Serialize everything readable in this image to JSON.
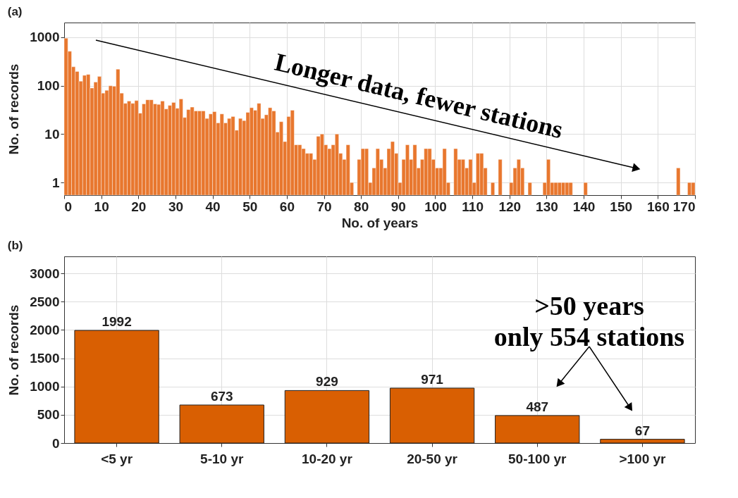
{
  "chart_data": [
    {
      "type": "histogram",
      "title": "(a)",
      "xlabel": "No. of years",
      "ylabel": "No. of records",
      "color": "#e8772e",
      "bins": [
        0,
        1,
        2,
        3,
        4,
        5,
        6,
        7,
        8,
        9,
        10,
        11,
        12,
        13,
        14,
        15,
        16,
        17,
        18,
        19,
        20,
        21,
        22,
        23,
        24,
        25,
        26,
        27,
        28,
        29,
        30,
        31,
        32,
        33,
        34,
        35,
        36,
        37,
        38,
        39,
        40,
        41,
        42,
        43,
        44,
        45,
        46,
        47,
        48,
        49,
        50,
        51,
        52,
        53,
        54,
        55,
        56,
        57,
        58,
        59,
        60,
        61,
        62,
        63,
        64,
        65,
        66,
        67,
        68,
        69,
        70,
        71,
        72,
        73,
        74,
        75,
        76,
        77,
        78,
        79,
        80,
        81,
        82,
        83,
        84,
        85,
        86,
        87,
        88,
        89,
        90,
        91,
        92,
        93,
        94,
        95,
        96,
        97,
        98,
        99,
        100,
        101,
        102,
        103,
        104,
        105,
        106,
        107,
        108,
        109,
        110,
        111,
        112,
        113,
        114,
        115,
        116,
        117,
        118,
        119,
        120,
        121,
        122,
        123,
        124,
        125,
        126,
        127,
        128,
        129,
        130,
        131,
        132,
        133,
        134,
        135,
        136,
        137,
        138,
        139,
        140,
        141,
        142,
        143,
        144,
        145,
        146,
        147,
        148,
        149,
        150,
        151,
        152,
        153,
        154,
        155,
        156,
        157,
        158,
        159,
        160,
        161,
        162,
        163,
        164,
        165,
        166,
        167,
        168,
        169,
        170
      ],
      "values": [
        950,
        510,
        244,
        196,
        123,
        163,
        170,
        89,
        118,
        154,
        70,
        80,
        99,
        97,
        218,
        70,
        43,
        48,
        43,
        49,
        27,
        42,
        51,
        51,
        42,
        41,
        48,
        33,
        39,
        45,
        34,
        53,
        22,
        32,
        36,
        30,
        30,
        30,
        21,
        26,
        29,
        17,
        26,
        17,
        21,
        23,
        12,
        21,
        19,
        28,
        35,
        31,
        43,
        21,
        25,
        35,
        30,
        11,
        18,
        7,
        23,
        31,
        6,
        6,
        5,
        4,
        4,
        3,
        9,
        10,
        6,
        5,
        6,
        10,
        4,
        3,
        6,
        1,
        null,
        3,
        5,
        5,
        1,
        2,
        5,
        3,
        2,
        5,
        7,
        4,
        1,
        3,
        6,
        3,
        6,
        2,
        3,
        5,
        5,
        3,
        2,
        2,
        5,
        1,
        null,
        5,
        3,
        3,
        2,
        3,
        1,
        4,
        4,
        2,
        null,
        1,
        null,
        3,
        null,
        null,
        1,
        2,
        3,
        2,
        null,
        1,
        null,
        null,
        null,
        1,
        3,
        1,
        1,
        1,
        1,
        1,
        1,
        null,
        null,
        null,
        1,
        null,
        null,
        null,
        null,
        null,
        null,
        null,
        null,
        null,
        null,
        null,
        null,
        null,
        null,
        null,
        null,
        null,
        null,
        null,
        null,
        null,
        null,
        null,
        null,
        2,
        null,
        null,
        1,
        1
      ],
      "xlim": [
        0,
        170
      ],
      "ylim": [
        0.55,
        2000
      ],
      "xticks": [
        0,
        10,
        20,
        30,
        40,
        50,
        60,
        70,
        80,
        90,
        100,
        110,
        120,
        130,
        140,
        150,
        160,
        170
      ],
      "yticks": [
        1,
        10,
        100,
        1000
      ],
      "log": true,
      "grid": true,
      "annotations": [
        "Longer data, fewer stations"
      ]
    },
    {
      "type": "bar",
      "title": "(b)",
      "ylabel": "No. of records",
      "color": "#d95f02",
      "categories": [
        "<5 yr",
        "5-10 yr",
        "10-20 yr",
        "20-50 yr",
        "50-100 yr",
        ">100 yr"
      ],
      "values": [
        1992,
        673,
        929,
        971,
        487,
        67
      ],
      "ylim": [
        0,
        3300
      ],
      "yticks": [
        0,
        500,
        1000,
        1500,
        2000,
        2500,
        3000
      ],
      "grid": true,
      "data_labels": true,
      "annotations": [
        ">50 years\nonly 554 stations"
      ]
    }
  ]
}
